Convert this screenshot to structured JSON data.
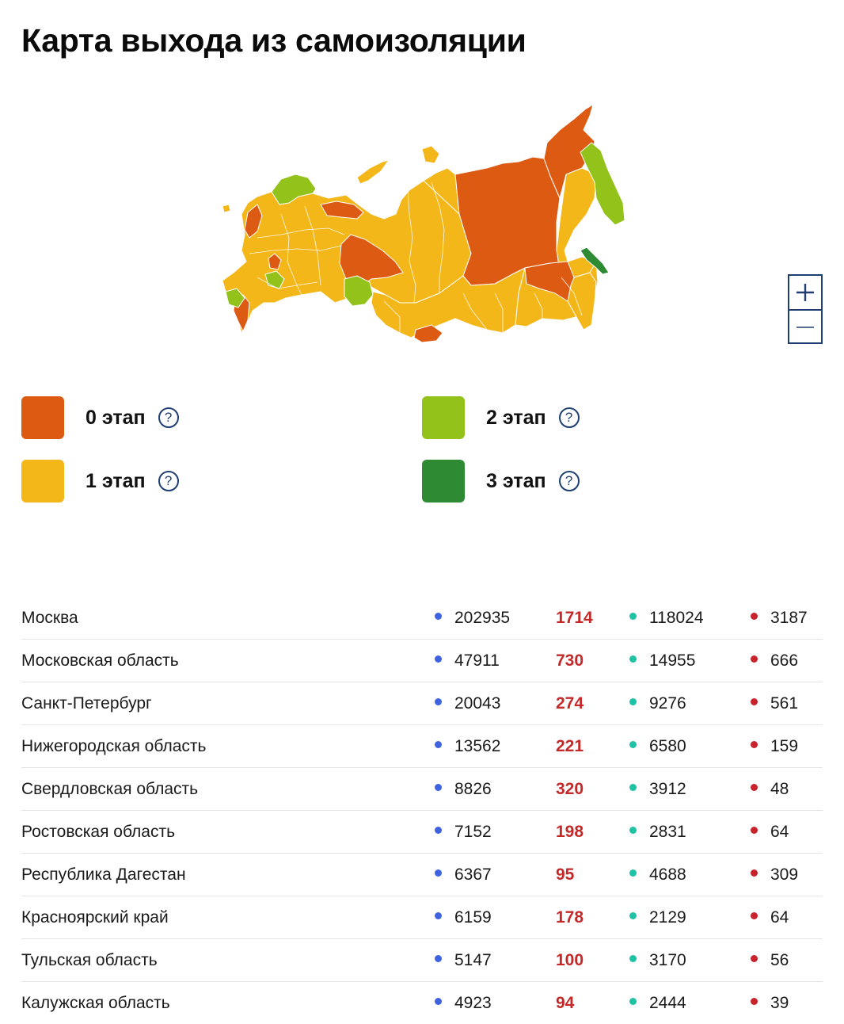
{
  "page": {
    "title": "Карта выхода из самоизоляции"
  },
  "colors": {
    "stage0": "#dd5a12",
    "stage1": "#f3b71a",
    "stage2": "#93c31a",
    "stage3": "#2e8b34",
    "cases_dot": "#3f63e0",
    "recovered_dot": "#1fc2a4",
    "deaths_dot": "#c8232c",
    "new_cases_text": "#c62828"
  },
  "map": {
    "zoom_in_icon": "plus-icon",
    "zoom_out_icon": "minus-icon"
  },
  "legend": {
    "items": [
      {
        "label": "0 этап",
        "color": "#dd5a12",
        "icon": "help-icon"
      },
      {
        "label": "2 этап",
        "color": "#93c31a",
        "icon": "help-icon"
      },
      {
        "label": "1 этап",
        "color": "#f3b71a",
        "icon": "help-icon"
      },
      {
        "label": "3 этап",
        "color": "#2e8b34",
        "icon": "help-icon"
      }
    ],
    "help_glyph": "?"
  },
  "table": {
    "rows": [
      {
        "region": "Москва",
        "cases": "202935",
        "new_cases": "1714",
        "recovered": "118024",
        "deaths": "3187"
      },
      {
        "region": "Московская область",
        "cases": "47911",
        "new_cases": "730",
        "recovered": "14955",
        "deaths": "666"
      },
      {
        "region": "Санкт-Петербург",
        "cases": "20043",
        "new_cases": "274",
        "recovered": "9276",
        "deaths": "561"
      },
      {
        "region": "Нижегородская область",
        "cases": "13562",
        "new_cases": "221",
        "recovered": "6580",
        "deaths": "159"
      },
      {
        "region": "Свердловская область",
        "cases": "8826",
        "new_cases": "320",
        "recovered": "3912",
        "deaths": "48"
      },
      {
        "region": "Ростовская область",
        "cases": "7152",
        "new_cases": "198",
        "recovered": "2831",
        "deaths": "64"
      },
      {
        "region": "Республика Дагестан",
        "cases": "6367",
        "new_cases": "95",
        "recovered": "4688",
        "deaths": "309"
      },
      {
        "region": "Красноярский край",
        "cases": "6159",
        "new_cases": "178",
        "recovered": "2129",
        "deaths": "64"
      },
      {
        "region": "Тульская область",
        "cases": "5147",
        "new_cases": "100",
        "recovered": "3170",
        "deaths": "56"
      },
      {
        "region": "Калужская область",
        "cases": "4923",
        "new_cases": "94",
        "recovered": "2444",
        "deaths": "39"
      }
    ]
  }
}
